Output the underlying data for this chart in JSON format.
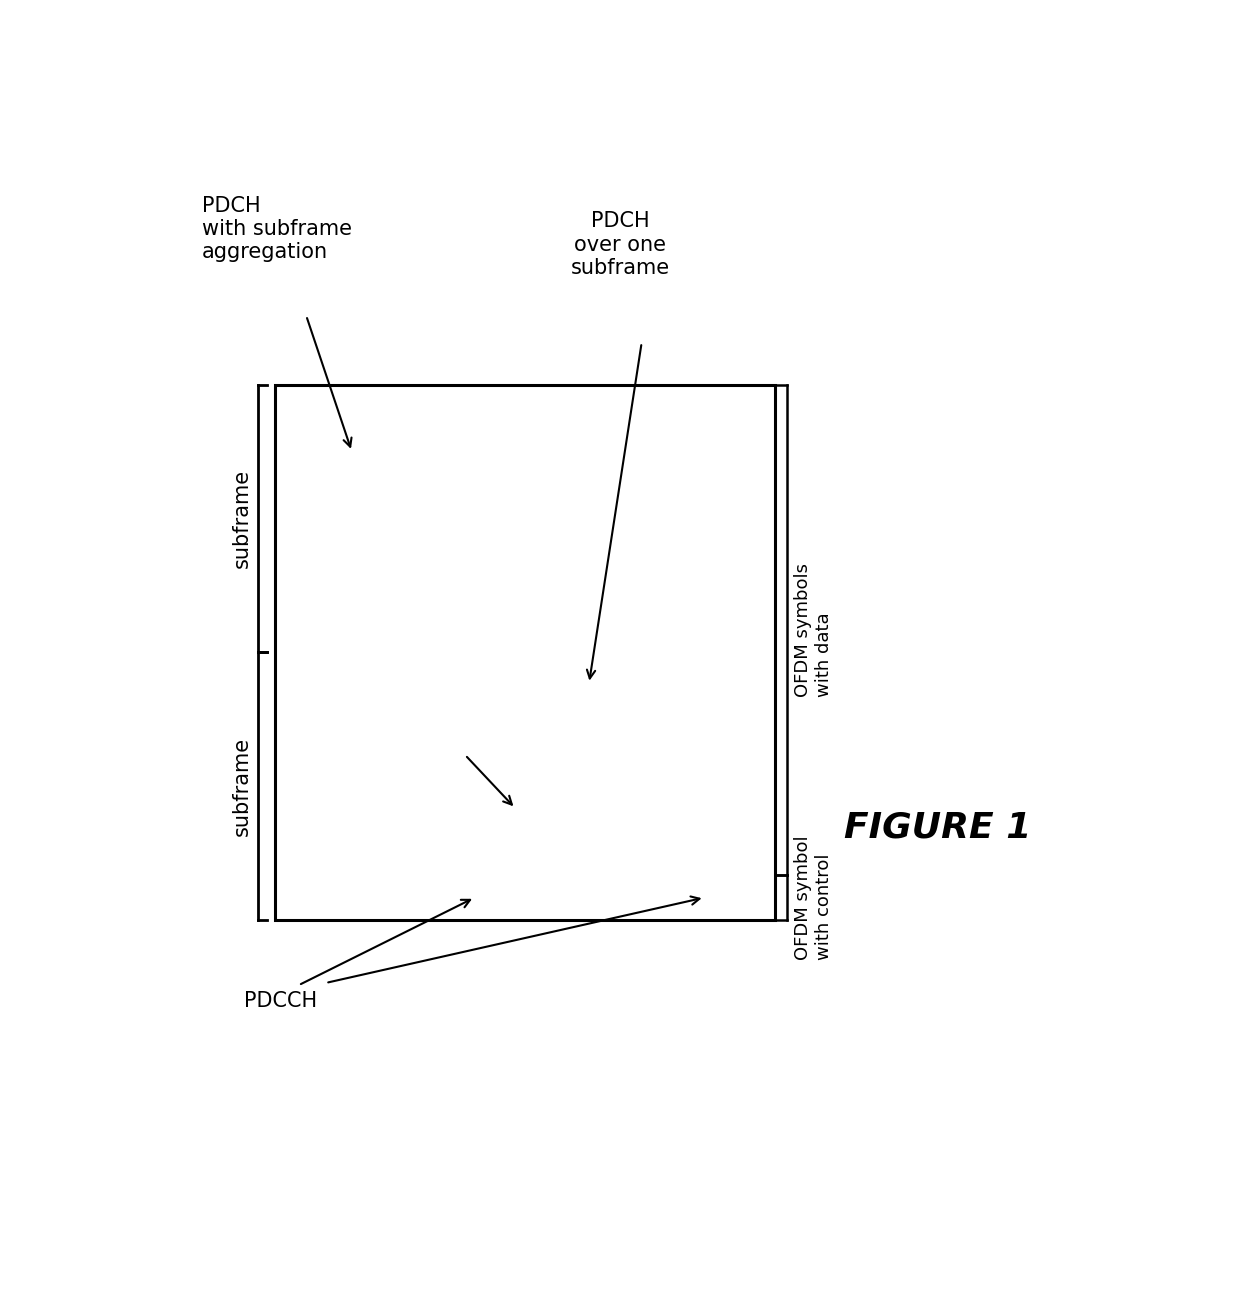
{
  "fig_width": 12.4,
  "fig_height": 13.13,
  "bg_color": "#ffffff",
  "title": "FIGURE 1",
  "title_fontsize": 26,
  "label_pdch_agg": "PDCH\nwith subframe\naggregation",
  "label_pdch_one": "PDCH\nover one\nsubframe",
  "label_ofdm_data": "OFDM symbols\nwith data",
  "label_ofdm_ctrl": "OFDM symbol\nwith control",
  "label_pdcch": "PDCCH",
  "label_sf": "subframe",
  "lw": 2.2,
  "lw_inner": 1.4,
  "ec": "#000000"
}
